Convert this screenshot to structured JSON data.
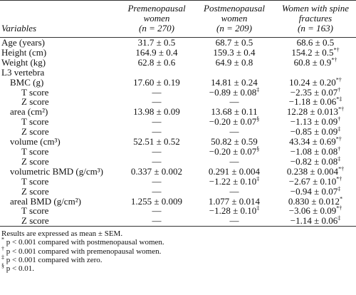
{
  "header": {
    "variables": "Variables",
    "groups": [
      {
        "title": "Premenopausal women",
        "n": "(n = 270)"
      },
      {
        "title": "Postmenopausal women",
        "n": "(n = 209)"
      },
      {
        "title": "Women with spine fractures",
        "n": "(n = 163)"
      }
    ]
  },
  "rows": [
    {
      "label": "Age (years)",
      "cells": [
        "31.7 ± 0.5",
        "68.7 ± 0.5",
        "68.6 ± 0.5"
      ]
    },
    {
      "label": "Height (cm)",
      "cells": [
        "164.9 ± 0.4",
        "159.3 ± 0.4",
        {
          "value": "154.2 ± 0.5",
          "sup": "*†"
        }
      ]
    },
    {
      "label": "Weight (kg)",
      "cells": [
        "62.8 ± 0.6",
        "64.9 ± 0.8",
        {
          "value": "60.8 ± 0.9",
          "sup": "*†"
        }
      ]
    }
  ],
  "section": {
    "label": "L3 vertebra",
    "measures": [
      {
        "label": "BMC (g)",
        "cells": [
          "17.60 ± 0.19",
          "14.81 ± 0.24",
          {
            "value": "10.24 ± 0.20",
            "sup": "*†"
          }
        ],
        "scores": [
          {
            "label": "T score",
            "cells": [
              "—",
              {
                "value": "−0.89 ± 0.08",
                "sup": "‡"
              },
              {
                "value": "−2.35 ± 0.07",
                "sup": "†"
              }
            ]
          },
          {
            "label": "Z score",
            "cells": [
              "—",
              "—",
              {
                "value": "−1.18 ± 0.06",
                "sup": "*‡"
              }
            ]
          }
        ]
      },
      {
        "label": "area (cm²)",
        "cells": [
          "13.98 ± 0.09",
          "13.68 ± 0.11",
          {
            "value": "12.28 ± 0.013",
            "sup": "*†"
          }
        ],
        "scores": [
          {
            "label": "T score",
            "cells": [
              "—",
              {
                "value": "−0.20 ± 0.07",
                "sup": "§"
              },
              {
                "value": "−1.13 ± 0.09",
                "sup": "†"
              }
            ]
          },
          {
            "label": "Z score",
            "cells": [
              "—",
              "—",
              {
                "value": "−0.85 ± 0.09",
                "sup": "‡"
              }
            ]
          }
        ]
      },
      {
        "label": "volume (cm³)",
        "cells": [
          "52.51 ± 0.52",
          "50.82 ± 0.59",
          {
            "value": "43.34 ± 0.69",
            "sup": "*†"
          }
        ],
        "scores": [
          {
            "label": "T score",
            "cells": [
              "—",
              {
                "value": "−0.20 ± 0.07",
                "sup": "§"
              },
              {
                "value": "−1.08 ± 0.08",
                "sup": "†"
              }
            ]
          },
          {
            "label": "Z score",
            "cells": [
              "—",
              "—",
              {
                "value": "−0.82 ± 0.08",
                "sup": "‡"
              }
            ]
          }
        ]
      },
      {
        "label": "volumetric BMD (g/cm³)",
        "cells": [
          "0.337 ± 0.002",
          "0.291 ± 0.004",
          {
            "value": "0.238 ± 0.004",
            "sup": "*†"
          }
        ],
        "scores": [
          {
            "label": "T score",
            "cells": [
              "—",
              {
                "value": "−1.22 ± 0.10",
                "sup": "‡"
              },
              {
                "value": "−2.67 ± 0.10",
                "sup": "*†"
              }
            ]
          },
          {
            "label": "Z score",
            "cells": [
              "—",
              "—",
              {
                "value": "−0.94 ± 0.07",
                "sup": "‡"
              }
            ]
          }
        ]
      },
      {
        "label": "areal BMD (g/cm²)",
        "cells": [
          "1.255 ± 0.009",
          "1.077 ± 0.014",
          {
            "value": "0.830 ± 0.012",
            "sup": "*"
          }
        ],
        "scores": [
          {
            "label": "T score",
            "cells": [
              "—",
              {
                "value": "−1.28 ± 0.10",
                "sup": "‡"
              },
              {
                "value": "−3.06 ± 0.09",
                "sup": "*†"
              }
            ]
          },
          {
            "label": "Z score",
            "cells": [
              "—",
              "—",
              {
                "value": "−1.14 ± 0.06",
                "sup": "‡"
              }
            ]
          }
        ]
      }
    ]
  },
  "footnotes": [
    {
      "mark": "",
      "text": "Results are expressed as mean ± SEM."
    },
    {
      "mark": "*",
      "text": "p < 0.001 compared with postmenopausal women."
    },
    {
      "mark": "†",
      "text": "p < 0.001 compared with premenopausal women."
    },
    {
      "mark": "‡",
      "text": "p < 0.001 compared with zero."
    },
    {
      "mark": "§",
      "text": "p < 0.01."
    }
  ]
}
